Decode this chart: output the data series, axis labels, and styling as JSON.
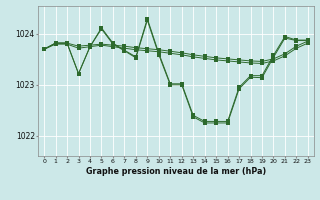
{
  "bg_color": "#cce8e8",
  "grid_color": "#ffffff",
  "line_color": "#2d6a2d",
  "marker_color": "#2d6a2d",
  "title": "Graphe pression niveau de la mer (hPa)",
  "ylabel_ticks": [
    1022,
    1023,
    1024
  ],
  "xlim": [
    -0.5,
    23.5
  ],
  "ylim": [
    1021.6,
    1024.55
  ],
  "series": [
    [
      1023.7,
      1023.8,
      1023.8,
      1023.75,
      1023.78,
      1023.8,
      1023.78,
      1023.75,
      1023.72,
      1023.7,
      1023.68,
      1023.65,
      1023.62,
      1023.58,
      1023.55,
      1023.52,
      1023.5,
      1023.48,
      1023.46,
      1023.45,
      1023.5,
      1023.6,
      1023.75,
      1023.85
    ],
    [
      1023.7,
      1023.8,
      1023.8,
      1023.75,
      1023.78,
      1023.8,
      1023.78,
      1023.75,
      1023.72,
      1023.7,
      1023.68,
      1023.65,
      1023.62,
      1023.58,
      1023.55,
      1023.52,
      1023.5,
      1023.48,
      1023.46,
      1023.45,
      1023.5,
      1023.6,
      1023.75,
      1023.85
    ],
    [
      1023.7,
      1023.82,
      1023.82,
      1023.22,
      1023.75,
      1024.12,
      1023.82,
      1023.68,
      1023.55,
      1024.3,
      1023.62,
      1023.02,
      1023.02,
      1022.4,
      1022.28,
      1022.28,
      1022.28,
      1022.95,
      1023.18,
      1023.18,
      1023.58,
      1023.95,
      1023.88,
      1023.88
    ],
    [
      1023.7,
      1023.82,
      1023.82,
      1023.22,
      1023.75,
      1024.1,
      1023.8,
      1023.68,
      1023.55,
      1024.28,
      1023.6,
      1023.02,
      1023.02,
      1022.38,
      1022.26,
      1022.26,
      1022.26,
      1022.93,
      1023.16,
      1023.15,
      1023.55,
      1023.92,
      1023.88,
      1023.88
    ]
  ],
  "figsize": [
    3.2,
    2.0
  ],
  "dpi": 100
}
